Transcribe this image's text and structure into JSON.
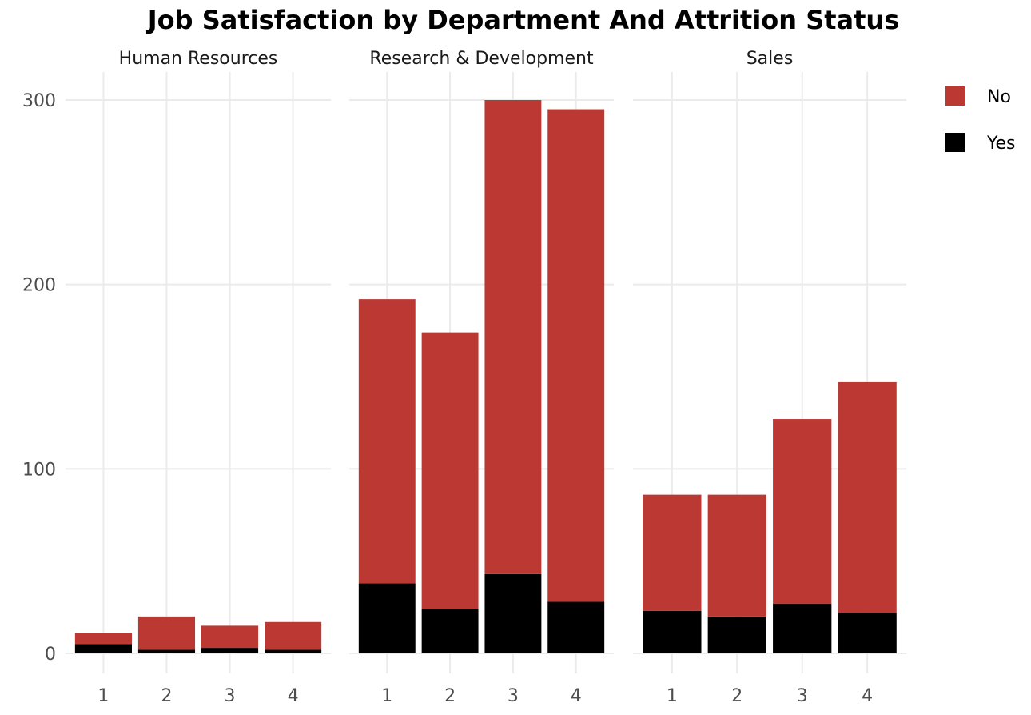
{
  "chart_data": {
    "type": "bar",
    "stacked": true,
    "faceted": true,
    "title": "Job Satisfaction by Department And Attrition Status",
    "xlabel": "",
    "ylabel": "",
    "ylim": [
      0,
      310
    ],
    "y_ticks": [
      0,
      100,
      200,
      300
    ],
    "y_tick_labels": [
      "0",
      "100",
      "200",
      "300"
    ],
    "categories": [
      "1",
      "2",
      "3",
      "4"
    ],
    "grid": true,
    "legend_position": "right",
    "legend": [
      {
        "name": "No",
        "color": "#bc3832"
      },
      {
        "name": "Yes",
        "color": "#000000"
      }
    ],
    "facets": [
      {
        "name": "Human Resources",
        "series": [
          {
            "name": "Yes",
            "color": "#000000",
            "values": [
              5,
              2,
              3,
              2
            ]
          },
          {
            "name": "No",
            "color": "#bc3832",
            "values": [
              6,
              18,
              12,
              15
            ]
          }
        ]
      },
      {
        "name": "Research & Development",
        "series": [
          {
            "name": "Yes",
            "color": "#000000",
            "values": [
              38,
              24,
              43,
              28
            ]
          },
          {
            "name": "No",
            "color": "#bc3832",
            "values": [
              154,
              150,
              257,
              267
            ]
          }
        ]
      },
      {
        "name": "Sales",
        "series": [
          {
            "name": "Yes",
            "color": "#000000",
            "values": [
              23,
              20,
              27,
              22
            ]
          },
          {
            "name": "No",
            "color": "#bc3832",
            "values": [
              63,
              66,
              100,
              125
            ]
          }
        ]
      }
    ]
  }
}
